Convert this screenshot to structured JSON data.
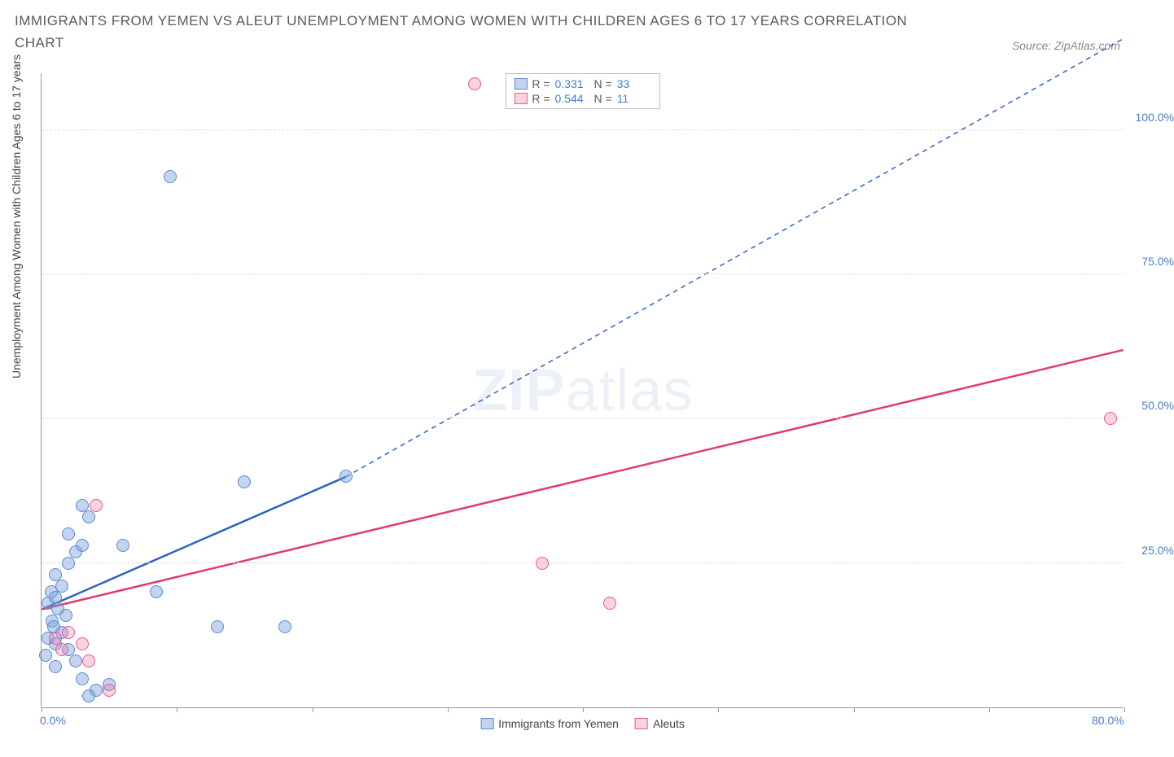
{
  "title": "IMMIGRANTS FROM YEMEN VS ALEUT UNEMPLOYMENT AMONG WOMEN WITH CHILDREN AGES 6 TO 17 YEARS CORRELATION CHART",
  "source": "Source: ZipAtlas.com",
  "watermark_zip": "ZIP",
  "watermark_atlas": "atlas",
  "chart": {
    "type": "scatter",
    "xlabel": "",
    "ylabel": "Unemployment Among Women with Children Ages 6 to 17 years",
    "xlim": [
      0,
      80
    ],
    "ylim": [
      0,
      110
    ],
    "x_ticks": [
      0,
      10,
      20,
      30,
      40,
      50,
      60,
      70,
      80
    ],
    "x_tick_labels": {
      "0": "0.0%",
      "80": "80.0%"
    },
    "y_gridlines": [
      25,
      50,
      75,
      100
    ],
    "y_tick_labels": {
      "25": "25.0%",
      "50": "50.0%",
      "75": "75.0%",
      "100": "100.0%"
    },
    "background_color": "#ffffff",
    "grid_color": "#dddddd",
    "axis_color": "#999999",
    "marker_radius": 8,
    "series": [
      {
        "name": "Immigrants from Yemen",
        "fill": "rgba(120,160,220,0.45)",
        "stroke": "#5b8bd0",
        "trend_color": "#2b62c0",
        "R": "0.331",
        "N": "33",
        "trend_solid": {
          "x1": 0,
          "y1": 17,
          "x2": 22.5,
          "y2": 40
        },
        "trend_dash": {
          "x1": 22.5,
          "y1": 40,
          "x2": 80,
          "y2": 116
        },
        "points": [
          {
            "x": 0.5,
            "y": 18
          },
          {
            "x": 0.7,
            "y": 20
          },
          {
            "x": 1.0,
            "y": 19
          },
          {
            "x": 1.2,
            "y": 17
          },
          {
            "x": 0.8,
            "y": 15
          },
          {
            "x": 1.5,
            "y": 21
          },
          {
            "x": 1.0,
            "y": 23
          },
          {
            "x": 2.0,
            "y": 25
          },
          {
            "x": 2.5,
            "y": 27
          },
          {
            "x": 2.0,
            "y": 30
          },
          {
            "x": 3.0,
            "y": 28
          },
          {
            "x": 3.5,
            "y": 33
          },
          {
            "x": 3.0,
            "y": 35
          },
          {
            "x": 1.0,
            "y": 11
          },
          {
            "x": 0.5,
            "y": 12
          },
          {
            "x": 1.5,
            "y": 13
          },
          {
            "x": 2.0,
            "y": 10
          },
          {
            "x": 0.3,
            "y": 9
          },
          {
            "x": 1.0,
            "y": 7
          },
          {
            "x": 2.5,
            "y": 8
          },
          {
            "x": 3.0,
            "y": 5
          },
          {
            "x": 4.0,
            "y": 3
          },
          {
            "x": 5.0,
            "y": 4
          },
          {
            "x": 3.5,
            "y": 2
          },
          {
            "x": 6.0,
            "y": 28
          },
          {
            "x": 8.5,
            "y": 20
          },
          {
            "x": 13.0,
            "y": 14
          },
          {
            "x": 18.0,
            "y": 14
          },
          {
            "x": 15.0,
            "y": 39
          },
          {
            "x": 22.5,
            "y": 40
          },
          {
            "x": 9.5,
            "y": 92
          },
          {
            "x": 1.8,
            "y": 16
          },
          {
            "x": 0.9,
            "y": 14
          }
        ]
      },
      {
        "name": "Aleuts",
        "fill": "rgba(235,130,170,0.35)",
        "stroke": "#e65a8f",
        "trend_color": "#e03a74",
        "R": "0.544",
        "N": "11",
        "trend_solid": {
          "x1": 0,
          "y1": 17,
          "x2": 80,
          "y2": 62
        },
        "trend_dash": null,
        "points": [
          {
            "x": 1.0,
            "y": 12
          },
          {
            "x": 2.0,
            "y": 13
          },
          {
            "x": 1.5,
            "y": 10
          },
          {
            "x": 3.0,
            "y": 11
          },
          {
            "x": 3.5,
            "y": 8
          },
          {
            "x": 5.0,
            "y": 3
          },
          {
            "x": 4.0,
            "y": 35
          },
          {
            "x": 32.0,
            "y": 108
          },
          {
            "x": 37.0,
            "y": 25
          },
          {
            "x": 42.0,
            "y": 18
          },
          {
            "x": 79.0,
            "y": 50
          }
        ]
      }
    ],
    "legend_bottom": [
      {
        "label": "Immigrants from Yemen",
        "fill": "rgba(120,160,220,0.45)",
        "stroke": "#5b8bd0"
      },
      {
        "label": "Aleuts",
        "fill": "rgba(235,130,170,0.35)",
        "stroke": "#e65a8f"
      }
    ],
    "legend_top_labels": {
      "R": "R =",
      "N": "N ="
    }
  }
}
